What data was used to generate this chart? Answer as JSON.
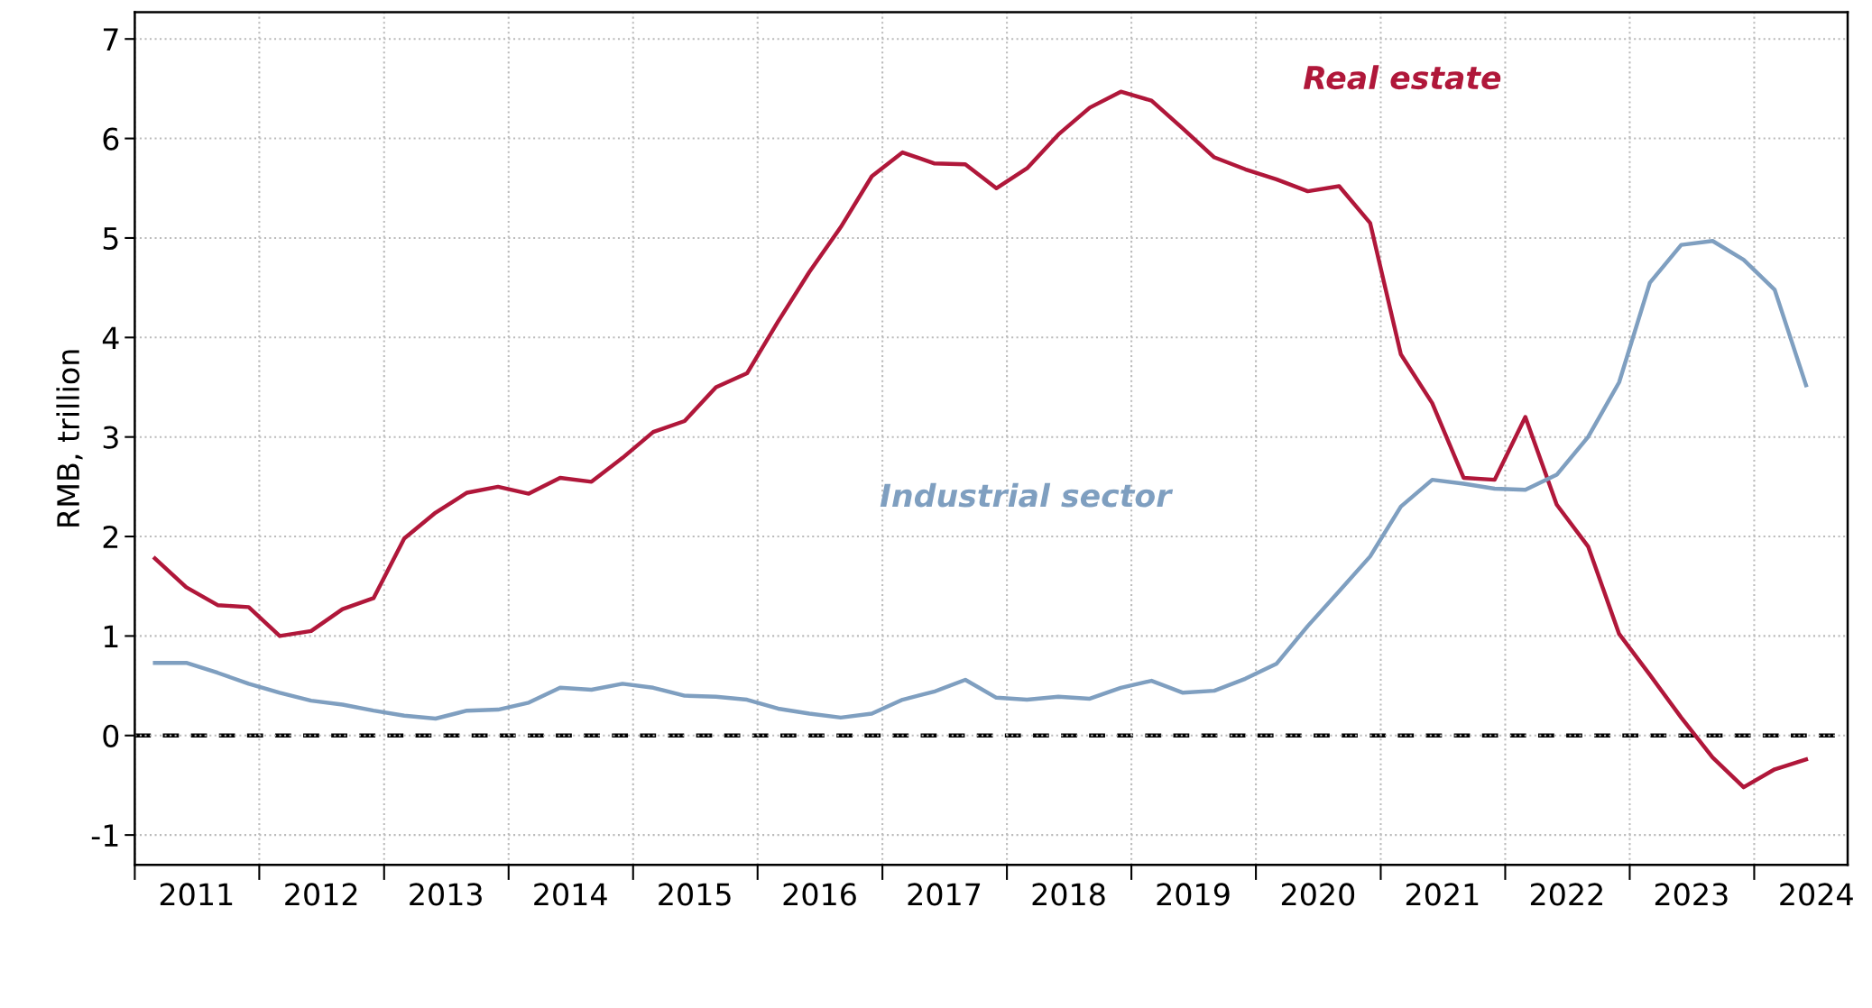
{
  "chart_data": {
    "type": "line",
    "ylabel": "RMB, trillion",
    "x": [
      "2011-03",
      "2011-06",
      "2011-09",
      "2011-12",
      "2012-03",
      "2012-06",
      "2012-09",
      "2012-12",
      "2013-03",
      "2013-06",
      "2013-09",
      "2013-12",
      "2014-03",
      "2014-06",
      "2014-09",
      "2014-12",
      "2015-03",
      "2015-06",
      "2015-09",
      "2015-12",
      "2016-03",
      "2016-06",
      "2016-09",
      "2016-12",
      "2017-03",
      "2017-06",
      "2017-09",
      "2017-12",
      "2018-03",
      "2018-06",
      "2018-09",
      "2018-12",
      "2019-03",
      "2019-06",
      "2019-09",
      "2019-12",
      "2020-03",
      "2020-06",
      "2020-09",
      "2020-12",
      "2021-03",
      "2021-06",
      "2021-09",
      "2021-12",
      "2022-03",
      "2022-06",
      "2022-09",
      "2022-12",
      "2023-03",
      "2023-06",
      "2023-09",
      "2023-12",
      "2024-03",
      "2024-06"
    ],
    "series": [
      {
        "name": "Real estate",
        "color": "#b0173a",
        "values": [
          1.78,
          1.49,
          1.31,
          1.29,
          1.0,
          1.05,
          1.27,
          1.38,
          1.98,
          2.24,
          2.44,
          2.5,
          2.43,
          2.59,
          2.55,
          2.79,
          3.05,
          3.16,
          3.5,
          3.64,
          4.16,
          4.66,
          5.11,
          5.62,
          5.86,
          5.75,
          5.74,
          5.5,
          5.7,
          6.04,
          6.31,
          6.47,
          6.38,
          6.1,
          5.81,
          5.69,
          5.59,
          5.47,
          5.52,
          5.15,
          3.83,
          3.34,
          2.59,
          2.57,
          3.2,
          2.32,
          1.9,
          1.02,
          0.61,
          0.18,
          -0.22,
          -0.52,
          -0.34,
          -0.24
        ]
      },
      {
        "name": "Industrial sector",
        "color": "#7f9fc0",
        "values": [
          0.73,
          0.73,
          0.63,
          0.52,
          0.43,
          0.35,
          0.31,
          0.25,
          0.2,
          0.17,
          0.25,
          0.26,
          0.33,
          0.48,
          0.46,
          0.52,
          0.48,
          0.4,
          0.39,
          0.36,
          0.27,
          0.22,
          0.18,
          0.22,
          0.36,
          0.44,
          0.56,
          0.38,
          0.36,
          0.39,
          0.37,
          0.48,
          0.55,
          0.43,
          0.45,
          0.57,
          0.72,
          1.1,
          1.45,
          1.8,
          2.3,
          2.57,
          2.53,
          2.48,
          2.47,
          2.62,
          3.0,
          3.55,
          4.55,
          4.93,
          4.97,
          4.78,
          4.48,
          3.52
        ]
      }
    ],
    "xlim": [
      "2011-01",
      "2024-10"
    ],
    "xticks": [
      {
        "value": "2011-01",
        "label": null
      },
      {
        "value": "2012-01",
        "label": null
      },
      {
        "value": "2013-01",
        "label": null
      },
      {
        "value": "2014-01",
        "label": null
      },
      {
        "value": "2015-01",
        "label": null
      },
      {
        "value": "2016-01",
        "label": null
      },
      {
        "value": "2017-01",
        "label": null
      },
      {
        "value": "2018-01",
        "label": null
      },
      {
        "value": "2019-01",
        "label": null
      },
      {
        "value": "2020-01",
        "label": null
      },
      {
        "value": "2021-01",
        "label": null
      },
      {
        "value": "2022-01",
        "label": null
      },
      {
        "value": "2023-01",
        "label": null
      },
      {
        "value": "2024-01",
        "label": null
      },
      {
        "value": "2011-07",
        "label": "2011"
      },
      {
        "value": "2012-07",
        "label": "2012"
      },
      {
        "value": "2013-07",
        "label": "2013"
      },
      {
        "value": "2014-07",
        "label": "2014"
      },
      {
        "value": "2015-07",
        "label": "2015"
      },
      {
        "value": "2016-07",
        "label": "2016"
      },
      {
        "value": "2017-07",
        "label": "2017"
      },
      {
        "value": "2018-07",
        "label": "2018"
      },
      {
        "value": "2019-07",
        "label": "2019"
      },
      {
        "value": "2020-07",
        "label": "2020"
      },
      {
        "value": "2021-07",
        "label": "2021"
      },
      {
        "value": "2022-07",
        "label": "2022"
      },
      {
        "value": "2023-07",
        "label": "2023"
      },
      {
        "value": "2024-07",
        "label": "2024"
      }
    ],
    "ylim": [
      -1.3,
      7.27
    ],
    "yticks": [
      -1,
      0,
      1,
      2,
      3,
      4,
      5,
      6,
      7
    ],
    "ref_lines": [
      {
        "axis": "y",
        "value": 0,
        "color": "#000000",
        "line_style": "dashed"
      }
    ],
    "grid": true,
    "legend": false,
    "line_style": "solid"
  }
}
